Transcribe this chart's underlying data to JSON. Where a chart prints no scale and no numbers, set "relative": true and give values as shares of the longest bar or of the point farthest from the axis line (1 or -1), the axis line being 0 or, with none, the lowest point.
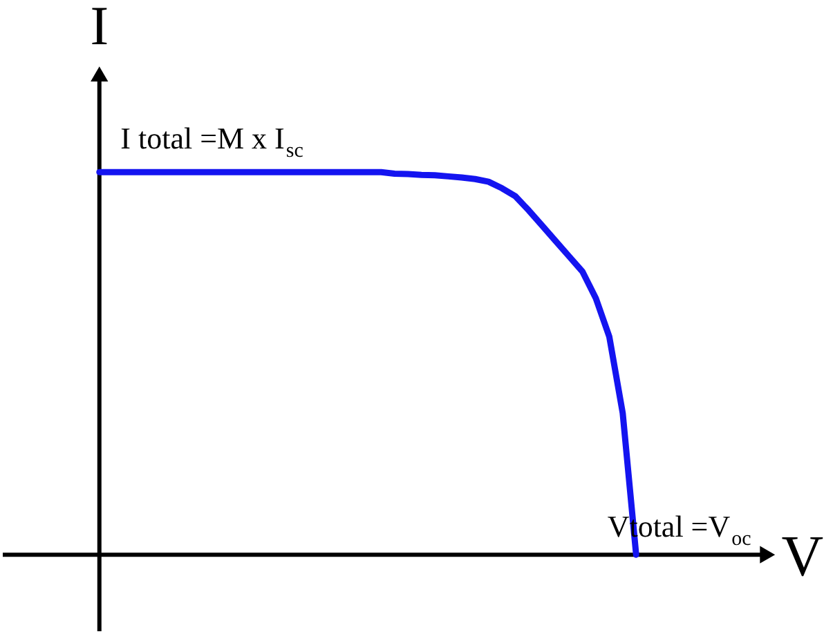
{
  "chart_data": {
    "type": "line",
    "relative": true,
    "xlabel": "V",
    "ylabel": "I",
    "categories": [
      null,
      null,
      null,
      null,
      null,
      null,
      null,
      null,
      null,
      null,
      null,
      null,
      null,
      null,
      null,
      null,
      null,
      null,
      null,
      null,
      null,
      null,
      null,
      null,
      null,
      null,
      null,
      null,
      null,
      null,
      null,
      null,
      null,
      null,
      null,
      null,
      null,
      null,
      null,
      null,
      null
    ],
    "series": [
      {
        "color": "#1414f0",
        "values": [
          1,
          1,
          1,
          1,
          1,
          1,
          1,
          1,
          1,
          1,
          1,
          1,
          1,
          1,
          1,
          1,
          1,
          1,
          1,
          1,
          1,
          1,
          0.996,
          0.995,
          0.993,
          0.992,
          0.989,
          0.986,
          0.982,
          0.975,
          0.958,
          0.937,
          0.9,
          0.86,
          0.82,
          0.78,
          0.74,
          0.67,
          0.57,
          0.37,
          0
        ]
      }
    ],
    "annotations": [
      "I total =M x I$_{sc}$",
      "Vtotal =V$_{oc}$"
    ],
    "marker": "none",
    "line_style": "solid"
  }
}
